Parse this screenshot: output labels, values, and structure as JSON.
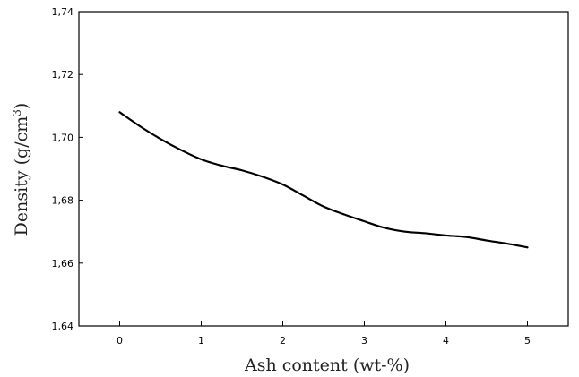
{
  "chart_data": {
    "type": "line",
    "xlabel": "Ash content (wt-%)",
    "ylabel": "Density (g/cm",
    "ylabel_superscript": "3",
    "ylabel_suffix": ")",
    "xlim": [
      -0.5,
      5.5
    ],
    "ylim": [
      1.64,
      1.74
    ],
    "x_ticks": [
      0,
      1,
      2,
      3,
      4,
      5
    ],
    "x_tick_labels": [
      "0",
      "1",
      "2",
      "3",
      "4",
      "5"
    ],
    "y_ticks": [
      1.64,
      1.66,
      1.68,
      1.7,
      1.72,
      1.74
    ],
    "y_tick_labels": [
      "1,64",
      "1,66",
      "1,68",
      "1,70",
      "1,72",
      "1,74"
    ],
    "grid": false,
    "line_color": "#000000",
    "series": [
      {
        "x": [
          0,
          0.25,
          0.5,
          0.75,
          1.0,
          1.25,
          1.5,
          1.75,
          2.0,
          2.25,
          2.5,
          2.75,
          3.0,
          3.25,
          3.5,
          3.75,
          4.0,
          4.25,
          4.5,
          4.75,
          5.0
        ],
        "values": [
          1.708,
          1.7035,
          1.6995,
          1.696,
          1.693,
          1.691,
          1.6895,
          1.6875,
          1.685,
          1.6815,
          1.678,
          1.6755,
          1.6733,
          1.6712,
          1.67,
          1.6695,
          1.6688,
          1.6683,
          1.6672,
          1.6662,
          1.665
        ]
      }
    ]
  }
}
